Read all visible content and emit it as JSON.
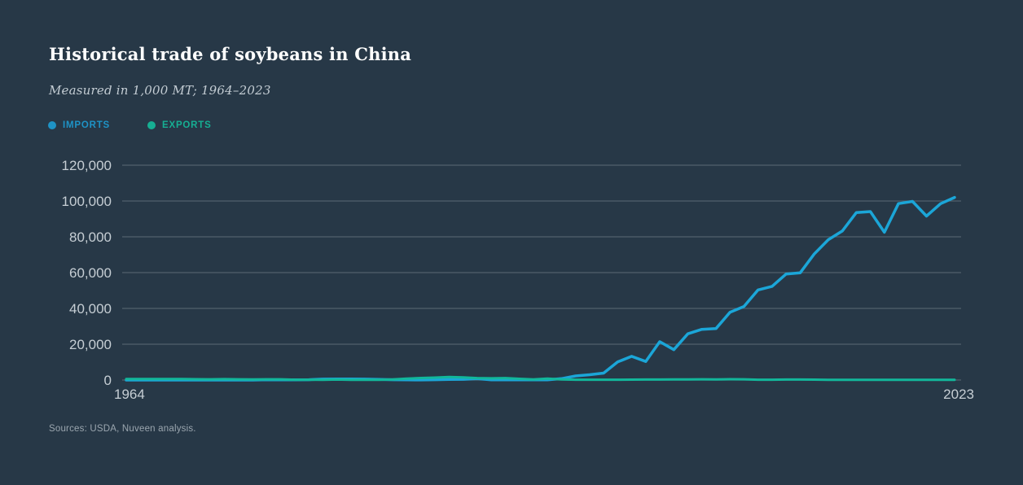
{
  "header": {
    "title": "Historical trade of soybeans in China",
    "subtitle": "Measured in 1,000 MT; 1964–2023"
  },
  "legend": [
    {
      "label": "IMPORTS",
      "color": "#1e93c6",
      "line_color": "#1ba6d8"
    },
    {
      "label": "EXPORTS",
      "color": "#16af93",
      "line_color": "#12b79b"
    }
  ],
  "footer": {
    "sources": "Sources: USDA, Nuveen analysis."
  },
  "colors": {
    "background": "#273847",
    "gridline": "#51606d",
    "tick_text": "#c6ced4"
  },
  "chart_data": {
    "type": "line",
    "title": "Historical trade of soybeans in China",
    "subtitle": "Measured in 1,000 MT; 1964–2023",
    "unit": "1,000 MT",
    "xlabel": "",
    "ylabel": "",
    "grid": "horizontal",
    "legend_position": "top-left",
    "xlim": [
      1964,
      2023
    ],
    "ylim": [
      0,
      120000
    ],
    "yticks": [
      0,
      20000,
      40000,
      60000,
      80000,
      100000,
      120000
    ],
    "ytick_labels": [
      "0",
      "20,000",
      "40,000",
      "60,000",
      "80,000",
      "100,000",
      "120,000"
    ],
    "xtick_labels": [
      "1964",
      "2023"
    ],
    "x": [
      1964,
      1965,
      1966,
      1967,
      1968,
      1969,
      1970,
      1971,
      1972,
      1973,
      1974,
      1975,
      1976,
      1977,
      1978,
      1979,
      1980,
      1981,
      1982,
      1983,
      1984,
      1985,
      1986,
      1987,
      1988,
      1989,
      1990,
      1991,
      1992,
      1993,
      1994,
      1995,
      1996,
      1997,
      1998,
      1999,
      2000,
      2001,
      2002,
      2003,
      2004,
      2005,
      2006,
      2007,
      2008,
      2009,
      2010,
      2011,
      2012,
      2013,
      2014,
      2015,
      2016,
      2017,
      2018,
      2019,
      2020,
      2021,
      2022,
      2023
    ],
    "series": [
      {
        "name": "Imports",
        "color": "#1ba6d8",
        "values": [
          0,
          0,
          0,
          0,
          0,
          0,
          0,
          0,
          0,
          0,
          200,
          100,
          100,
          200,
          500,
          600,
          570,
          500,
          300,
          200,
          100,
          50,
          200,
          300,
          400,
          800,
          100,
          100,
          150,
          100,
          155,
          795,
          2274,
          2940,
          3850,
          10100,
          13245,
          10385,
          21417,
          16933,
          25802,
          28317,
          28726,
          37816,
          41098,
          50338,
          52339,
          59231,
          59865,
          70364,
          78350,
          83230,
          93495,
          94100,
          82540,
          98530,
          99780,
          91570,
          98490,
          102000
        ]
      },
      {
        "name": "Exports",
        "color": "#12b79b",
        "values": [
          570,
          590,
          605,
          550,
          535,
          450,
          430,
          480,
          400,
          350,
          390,
          400,
          190,
          170,
          120,
          260,
          130,
          140,
          120,
          300,
          830,
          1130,
          1370,
          1700,
          1460,
          1100,
          940,
          1100,
          660,
          370,
          830,
          375,
          190,
          185,
          170,
          200,
          210,
          275,
          265,
          310,
          380,
          400,
          380,
          460,
          420,
          190,
          200,
          270,
          250,
          215,
          120,
          130,
          110,
          135,
          130,
          100,
          85,
          75,
          80,
          95
        ]
      }
    ]
  }
}
